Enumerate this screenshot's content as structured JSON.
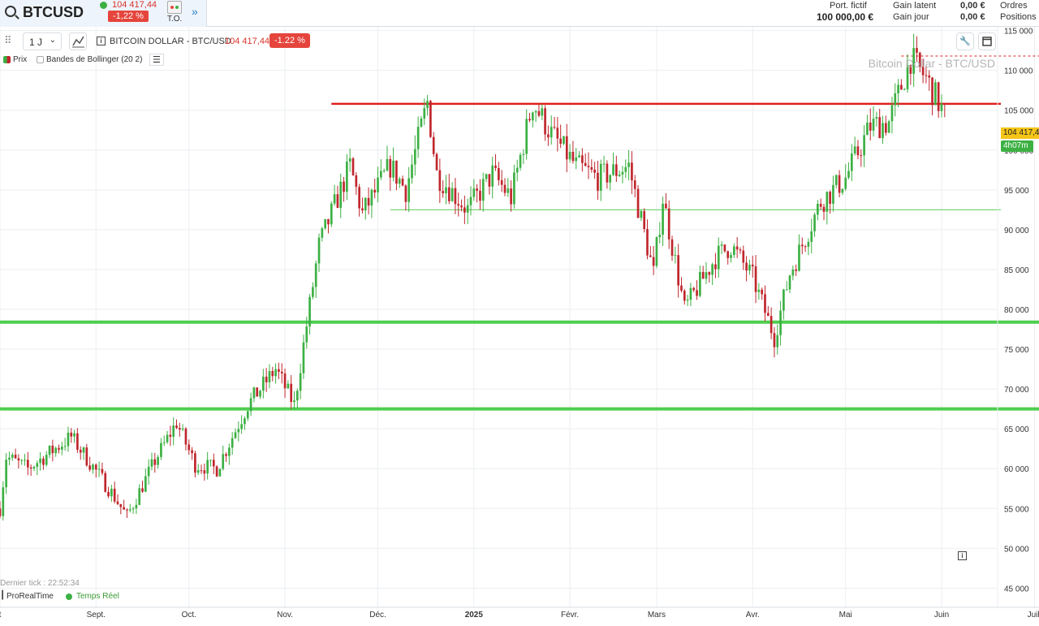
{
  "header": {
    "symbol": "BTCUSD",
    "price": "104 417,44",
    "change": "-1,22 %",
    "to_label": "T.O.",
    "portfolio_label": "Port. fictif",
    "portfolio_value": "100 000,00 €",
    "gain_latent_label": "Gain latent",
    "gain_jour_label": "Gain jour",
    "gain_latent_value": "0,00 €",
    "gain_jour_value": "0,00 €",
    "ordres_label": "Ordres",
    "positions_label": "Positions"
  },
  "toolbar": {
    "interval": "1 J",
    "title": "BITCOIN DOLLAR - BTC/USD",
    "price": "104 417,44",
    "change": "-1.22 %"
  },
  "legend": {
    "prix": "Prix",
    "bollinger": "Bandes de Bollinger (20 2)"
  },
  "watermark": "Bitcoin Dollar - BTC/USD",
  "price_tag": "104 417,4",
  "time_tag": "4h07m",
  "footer": {
    "last_tick": "Dernier tick : 22:52:34",
    "provider": "ProRealTime",
    "realtime": "Temps Réel"
  },
  "colors": {
    "up": "#3cb043",
    "down": "#c0262d",
    "resistance": "#e02020",
    "support": "#4fce4f"
  },
  "chart_data": {
    "type": "candlestick",
    "title": "BITCOIN DOLLAR - BTC/USD",
    "interval": "1 J",
    "ylim": [
      43000,
      117000
    ],
    "y_ticks": [
      45000,
      50000,
      55000,
      60000,
      65000,
      70000,
      75000,
      80000,
      85000,
      90000,
      95000,
      100000,
      105000,
      110000,
      115000
    ],
    "y_tick_labels": [
      "45 000",
      "50 000",
      "55 000",
      "60 000",
      "65 000",
      "70 000",
      "75 000",
      "80 000",
      "85 000",
      "90 000",
      "95 000",
      "100 000",
      "105 000",
      "110 000",
      "115 000"
    ],
    "x_labels": [
      {
        "label": "t",
        "date": "2024-08-01"
      },
      {
        "label": "Sept.",
        "date": "2024-09-01"
      },
      {
        "label": "Oct.",
        "date": "2024-10-01"
      },
      {
        "label": "Nov.",
        "date": "2024-11-01"
      },
      {
        "label": "Déc.",
        "date": "2024-12-01"
      },
      {
        "label": "2025",
        "date": "2025-01-01",
        "bold": true
      },
      {
        "label": "Févr.",
        "date": "2025-02-01"
      },
      {
        "label": "Mars",
        "date": "2025-03-01"
      },
      {
        "label": "Avr.",
        "date": "2025-04-01"
      },
      {
        "label": "Mai",
        "date": "2025-05-01"
      },
      {
        "label": "Juin",
        "date": "2025-06-01"
      },
      {
        "label": "Juil.",
        "date": "2025-07-01"
      }
    ],
    "price_key_points": [
      {
        "date": "2024-08-01",
        "price": 55000
      },
      {
        "date": "2024-08-03",
        "price": 61500
      },
      {
        "date": "2024-08-10",
        "price": 60000
      },
      {
        "date": "2024-08-24",
        "price": 64000
      },
      {
        "date": "2024-09-06",
        "price": 57000
      },
      {
        "date": "2024-09-11",
        "price": 54000
      },
      {
        "date": "2024-09-20",
        "price": 61000
      },
      {
        "date": "2024-09-27",
        "price": 65800
      },
      {
        "date": "2024-10-03",
        "price": 60500
      },
      {
        "date": "2024-10-10",
        "price": 60000
      },
      {
        "date": "2024-10-20",
        "price": 68000
      },
      {
        "date": "2024-10-29",
        "price": 72500
      },
      {
        "date": "2024-11-04",
        "price": 68000
      },
      {
        "date": "2024-11-12",
        "price": 88000
      },
      {
        "date": "2024-11-22",
        "price": 98000
      },
      {
        "date": "2024-11-26",
        "price": 92000
      },
      {
        "date": "2024-12-05",
        "price": 98000
      },
      {
        "date": "2024-12-10",
        "price": 95000
      },
      {
        "date": "2024-12-17",
        "price": 106000
      },
      {
        "date": "2024-12-20",
        "price": 97000
      },
      {
        "date": "2024-12-30",
        "price": 92500
      },
      {
        "date": "2025-01-07",
        "price": 97000
      },
      {
        "date": "2025-01-13",
        "price": 94000
      },
      {
        "date": "2025-01-20",
        "price": 106000
      },
      {
        "date": "2025-01-26",
        "price": 102000
      },
      {
        "date": "2025-02-03",
        "price": 98000
      },
      {
        "date": "2025-02-10",
        "price": 96500
      },
      {
        "date": "2025-02-20",
        "price": 98000
      },
      {
        "date": "2025-02-28",
        "price": 84500
      },
      {
        "date": "2025-03-03",
        "price": 94000
      },
      {
        "date": "2025-03-10",
        "price": 80000
      },
      {
        "date": "2025-03-20",
        "price": 86500
      },
      {
        "date": "2025-03-25",
        "price": 88000
      },
      {
        "date": "2025-04-01",
        "price": 84000
      },
      {
        "date": "2025-04-08",
        "price": 76500
      },
      {
        "date": "2025-04-13",
        "price": 84500
      },
      {
        "date": "2025-04-23",
        "price": 93500
      },
      {
        "date": "2025-05-01",
        "price": 96500
      },
      {
        "date": "2025-05-09",
        "price": 103000
      },
      {
        "date": "2025-05-15",
        "price": 103500
      },
      {
        "date": "2025-05-22",
        "price": 111500
      },
      {
        "date": "2025-05-27",
        "price": 109000
      },
      {
        "date": "2025-06-02",
        "price": 104417
      }
    ],
    "horizontal_lines": [
      {
        "name": "resistance",
        "price": 105800,
        "color": "#e02020",
        "from_date": "2024-11-16",
        "style": "solid"
      },
      {
        "name": "ath-dashed",
        "price": 111800,
        "color": "#e02020",
        "from_date": "2025-05-19",
        "style": "dashed"
      },
      {
        "name": "support-thin",
        "price": 92500,
        "color": "#7ad67a",
        "from_date": "2024-12-05",
        "style": "solid"
      },
      {
        "name": "support-78k",
        "price": 78400,
        "color": "#4fce4f",
        "from_date": "2024-08-01",
        "style": "thick"
      },
      {
        "name": "support-67k",
        "price": 67500,
        "color": "#4fce4f",
        "from_date": "2024-08-01",
        "style": "thick"
      }
    ],
    "legend_placement": "top-left",
    "grid": true
  }
}
